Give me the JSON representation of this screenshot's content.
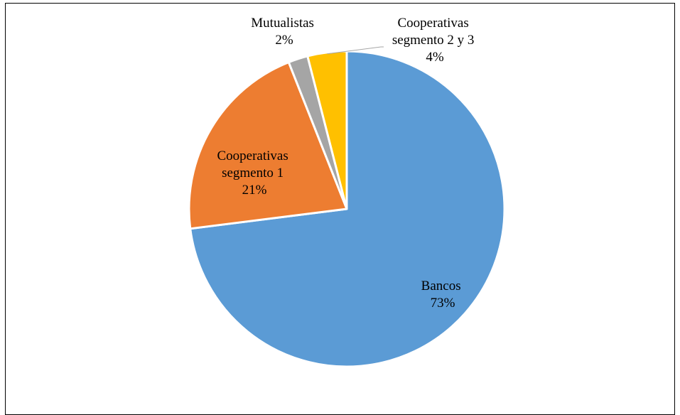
{
  "chart_data": {
    "type": "pie",
    "title": "",
    "slices": [
      {
        "label": "Bancos",
        "line1": "Bancos",
        "line2": "",
        "value": 73,
        "display": "73%",
        "color": "#5B9BD5"
      },
      {
        "label": "Cooperativas segmento 1",
        "line1": "Cooperativas",
        "line2": "segmento 1",
        "value": 21,
        "display": "21%",
        "color": "#ED7D31"
      },
      {
        "label": "Mutualistas",
        "line1": "Mutualistas",
        "line2": "",
        "value": 2,
        "display": "2%",
        "color": "#A5A5A5"
      },
      {
        "label": "Cooperativas segmento 2 y 3",
        "line1": "Cooperativas",
        "line2": "segmento 2 y 3",
        "value": 4,
        "display": "4%",
        "color": "#FFC000"
      }
    ],
    "start_angle": "12 o'clock",
    "direction": "clockwise",
    "label_position": "best fit",
    "legend": "none"
  }
}
